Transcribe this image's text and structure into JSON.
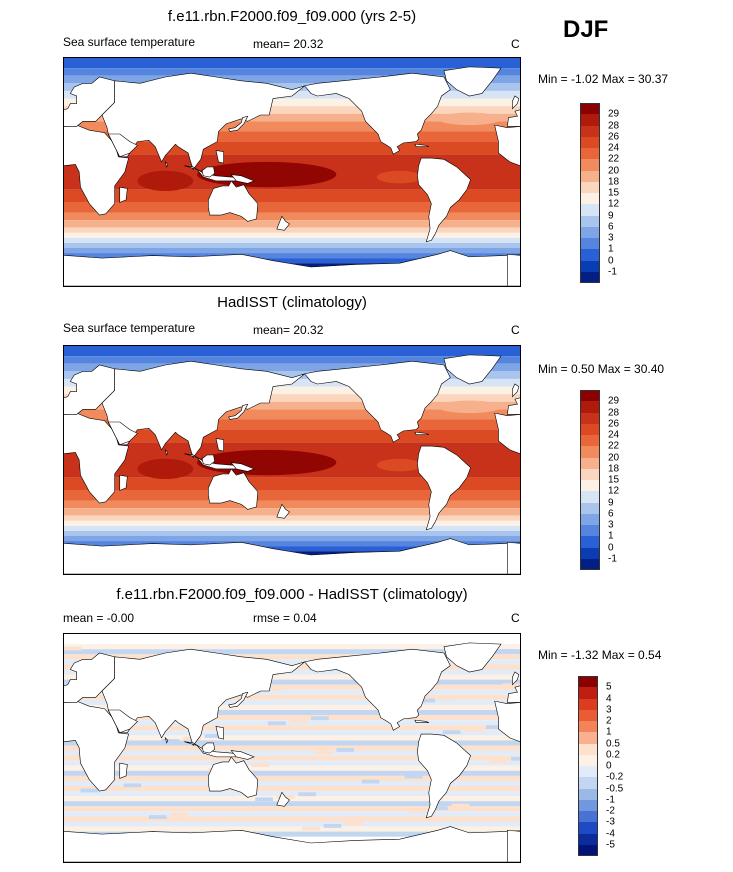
{
  "season": "DJF",
  "panels": [
    {
      "id": "model",
      "title": "f.e11.rbn.F2000.f09_f09.000 (yrs 2-5)",
      "left_label": "Sea surface temperature",
      "center_label": "mean=  20.32",
      "units": "C",
      "minmax": "Min =  -1.02 Max =  30.37",
      "field": "sst",
      "colorbar_labels": [
        "29",
        "28",
        "26",
        "24",
        "22",
        "20",
        "18",
        "15",
        "12",
        "9",
        "6",
        "3",
        "1",
        "0",
        "-1"
      ]
    },
    {
      "id": "obs",
      "title": "HadISST (climatology)",
      "left_label": "Sea surface temperature",
      "center_label": "mean=  20.32",
      "units": "C",
      "minmax": "Min =   0.50 Max =  30.40",
      "field": "sst",
      "colorbar_labels": [
        "29",
        "28",
        "26",
        "24",
        "22",
        "20",
        "18",
        "15",
        "12",
        "9",
        "6",
        "3",
        "1",
        "0",
        "-1"
      ]
    },
    {
      "id": "diff",
      "title": "f.e11.rbn.F2000.f09_f09.000 - HadISST (climatology)",
      "left_label": "mean =  -0.00",
      "center_label": "rmse =   0.04",
      "units": "C",
      "minmax": "Min =  -1.32 Max =   0.54",
      "field": "diff",
      "colorbar_labels": [
        "5",
        "4",
        "3",
        "2",
        "1",
        "0.5",
        "0.2",
        "0",
        "-0.2",
        "-0.5",
        "-1",
        "-2",
        "-3",
        "-4",
        "-5"
      ]
    }
  ],
  "colors": {
    "sst_scale": [
      "#8b0000",
      "#b01a0b",
      "#c8321a",
      "#dc4a24",
      "#e8663a",
      "#f18a5c",
      "#f7b08c",
      "#fbd6be",
      "#fdf0e4",
      "#d6e4f6",
      "#a9c5ee",
      "#7ea5e6",
      "#5585df",
      "#2a60d6",
      "#0a3cb4",
      "#031f86"
    ],
    "diff_scale": [
      "#8b0000",
      "#c01e10",
      "#dc3c20",
      "#ea5c34",
      "#f28458",
      "#f8b090",
      "#fde1cc",
      "#fdf0e4",
      "#e2ecf8",
      "#c2d6f1",
      "#9bb9e8",
      "#7198df",
      "#4873d5",
      "#1e4bc3",
      "#0a2c9c",
      "#021478"
    ],
    "land": "#ffffff",
    "coast": "#000000"
  }
}
